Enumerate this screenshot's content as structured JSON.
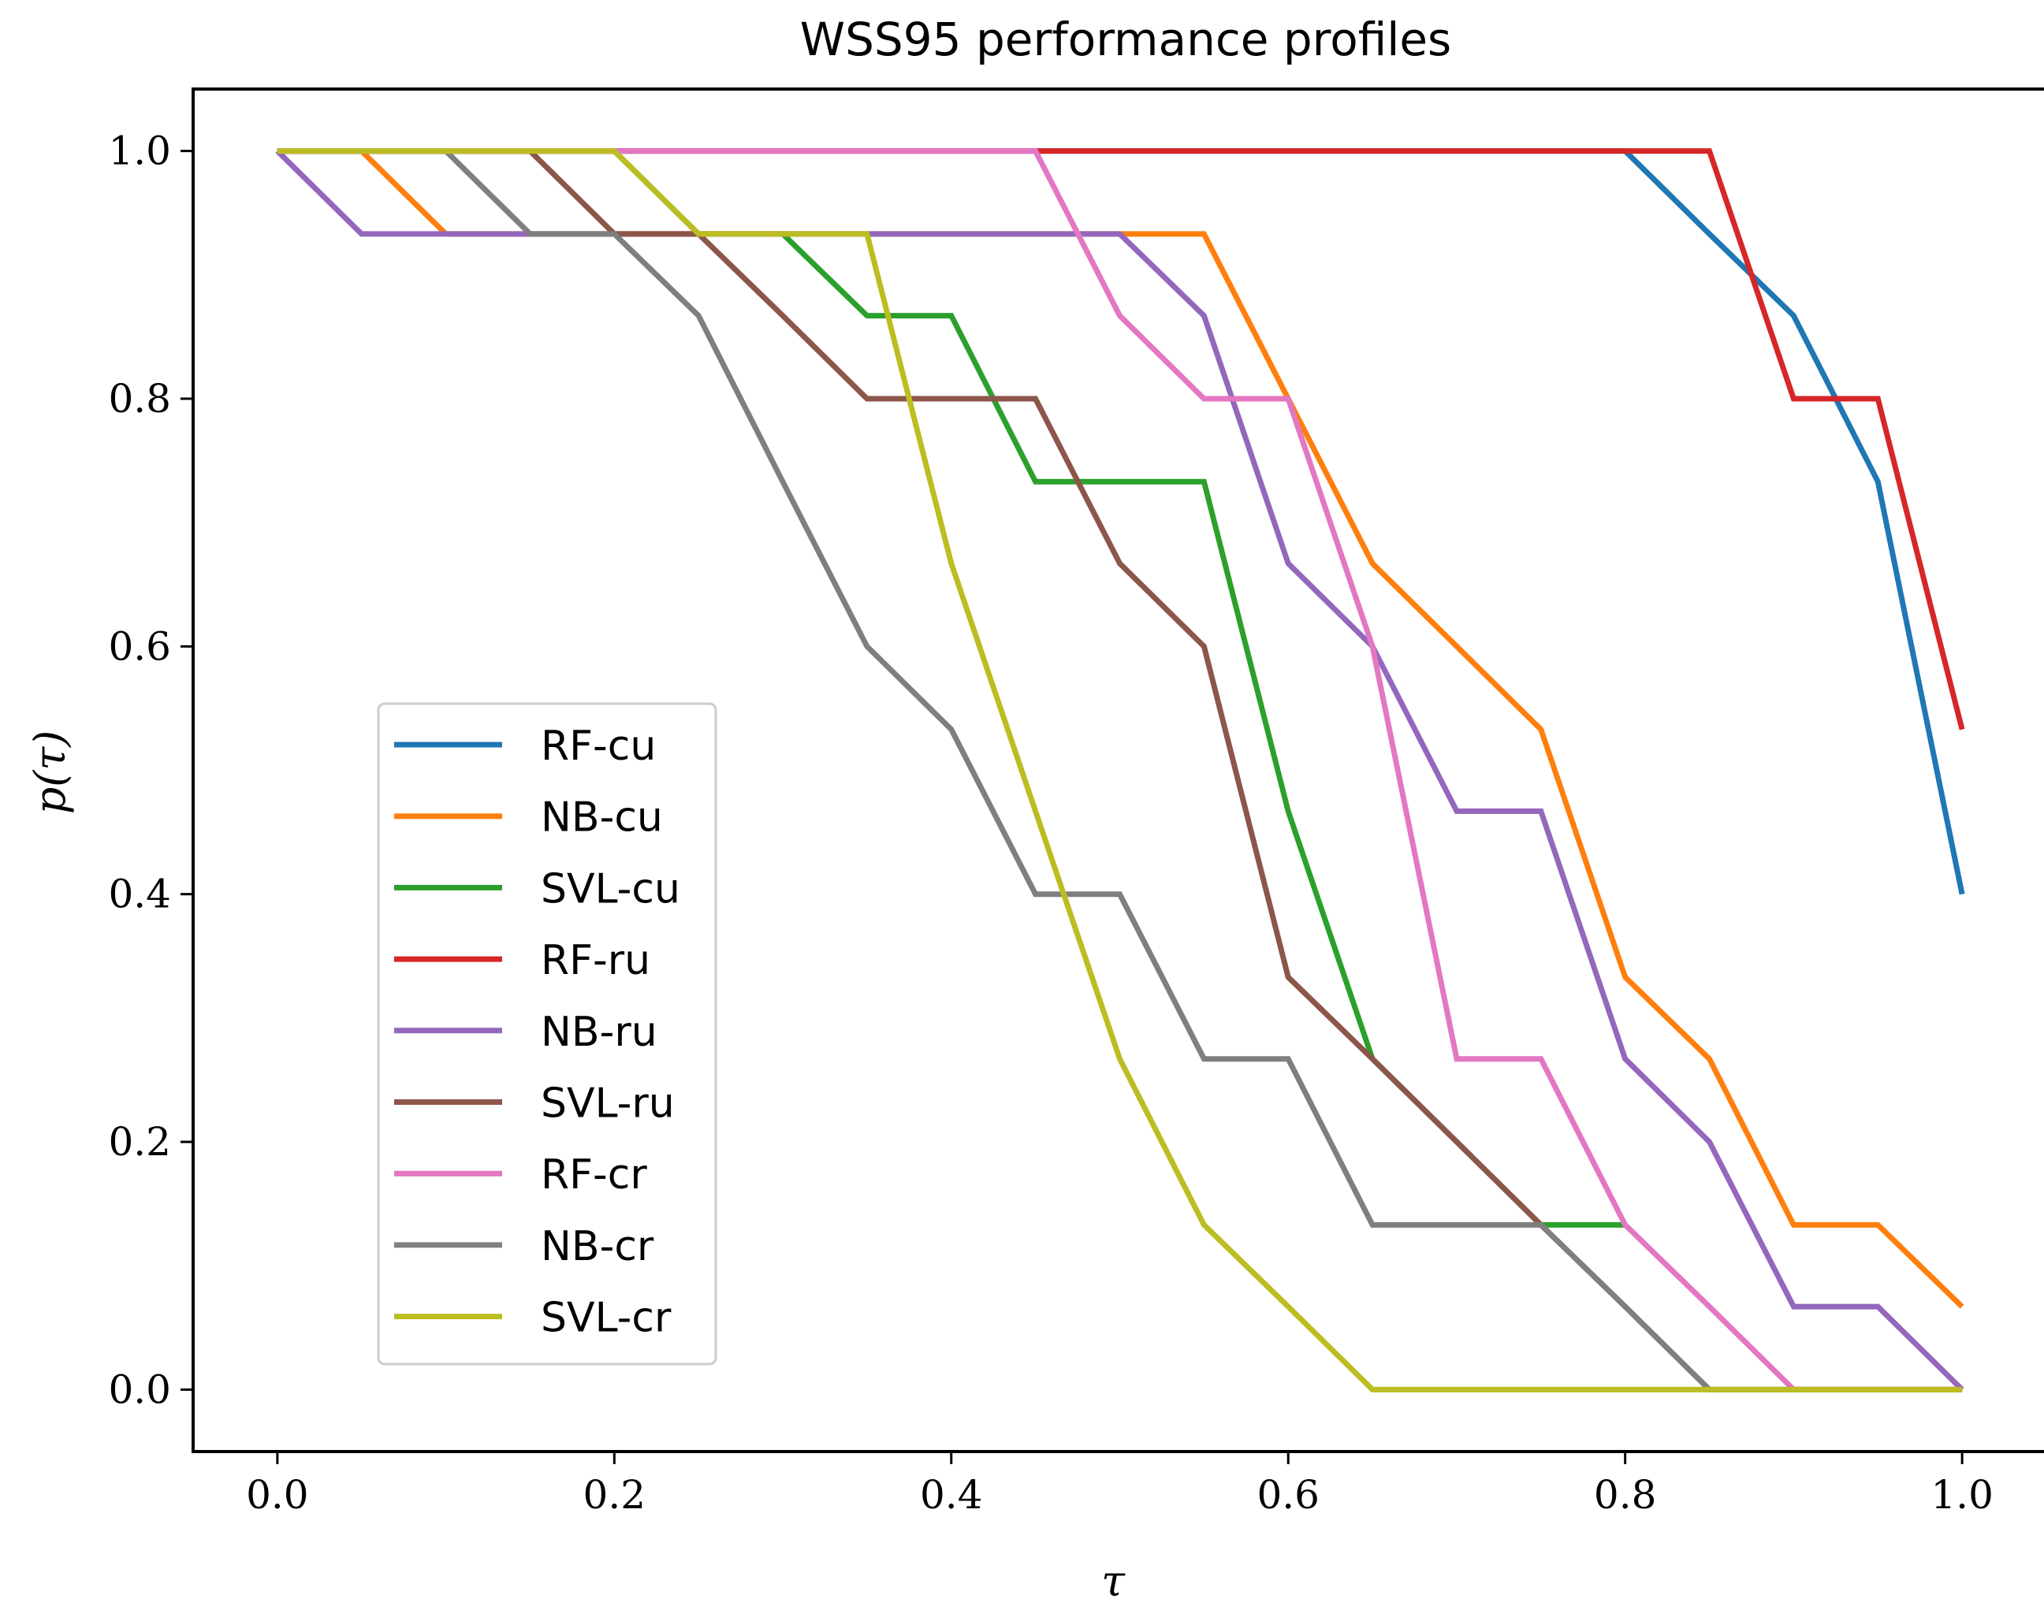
{
  "chart_data": {
    "type": "line",
    "title": "WSS95 performance profiles",
    "xlabel": "τ",
    "ylabel": "p(τ)",
    "xlim": [
      -0.05,
      1.05
    ],
    "ylim": [
      -0.05,
      1.05
    ],
    "xticks": [
      "0.0",
      "0.2",
      "0.4",
      "0.6",
      "0.8",
      "1.0"
    ],
    "yticks": [
      "0.0",
      "0.2",
      "0.4",
      "0.6",
      "0.8",
      "1.0"
    ],
    "legend_position": "center-left",
    "x": [
      0.0,
      0.05,
      0.1,
      0.15,
      0.2,
      0.25,
      0.3,
      0.35,
      0.4,
      0.45,
      0.5,
      0.55,
      0.6,
      0.65,
      0.7,
      0.75,
      0.8,
      0.85,
      0.9,
      0.95,
      1.0
    ],
    "series": [
      {
        "name": "RF-cu",
        "color": "#1f77b4",
        "values": [
          1,
          1,
          1,
          1,
          1,
          1,
          1,
          1,
          1,
          1,
          1,
          1,
          1,
          1,
          1,
          1,
          1,
          0.933,
          0.867,
          0.733,
          0.4
        ]
      },
      {
        "name": "NB-cu",
        "color": "#ff7f0e",
        "values": [
          1,
          1,
          0.933,
          0.933,
          0.933,
          0.933,
          0.933,
          0.933,
          0.933,
          0.933,
          0.933,
          0.933,
          0.8,
          0.667,
          0.6,
          0.533,
          0.333,
          0.267,
          0.133,
          0.133,
          0.067
        ]
      },
      {
        "name": "SVL-cu",
        "color": "#2ca02c",
        "values": [
          1,
          1,
          1,
          1,
          1,
          0.933,
          0.933,
          0.867,
          0.867,
          0.733,
          0.733,
          0.733,
          0.467,
          0.267,
          0.2,
          0.133,
          0.133,
          null,
          null,
          null,
          null
        ]
      },
      {
        "name": "RF-ru",
        "color": "#d62728",
        "values": [
          1,
          1,
          1,
          1,
          1,
          1,
          1,
          1,
          1,
          1,
          1,
          1,
          1,
          1,
          1,
          1,
          1,
          1,
          0.8,
          0.8,
          0.533
        ]
      },
      {
        "name": "NB-ru",
        "color": "#9467bd",
        "values": [
          1,
          0.933,
          0.933,
          0.933,
          0.933,
          0.933,
          0.933,
          0.933,
          0.933,
          0.933,
          0.933,
          0.867,
          0.667,
          0.6,
          0.467,
          0.467,
          0.267,
          0.2,
          0.067,
          0.067,
          0.0
        ]
      },
      {
        "name": "SVL-ru",
        "color": "#8c564b",
        "values": [
          1,
          1,
          1,
          1,
          0.933,
          0.933,
          0.867,
          0.8,
          0.8,
          0.8,
          0.667,
          0.6,
          0.333,
          0.267,
          0.2,
          0.133,
          0.067,
          0.0,
          0.0,
          0.0,
          0.0
        ]
      },
      {
        "name": "RF-cr",
        "color": "#e377c2",
        "values": [
          1,
          1,
          1,
          1,
          1,
          1,
          1,
          1,
          1,
          1,
          0.867,
          0.8,
          0.8,
          0.6,
          0.267,
          0.267,
          0.133,
          0.067,
          0.0,
          0.0,
          0.0
        ]
      },
      {
        "name": "NB-cr",
        "color": "#7f7f7f",
        "values": [
          1,
          1,
          1,
          0.933,
          0.933,
          0.867,
          0.733,
          0.6,
          0.533,
          0.4,
          0.4,
          0.267,
          0.267,
          0.133,
          0.133,
          0.133,
          0.067,
          0.0,
          0.0,
          0.0,
          0.0
        ]
      },
      {
        "name": "SVL-cr",
        "color": "#bcbd22",
        "values": [
          1,
          1,
          1,
          1,
          1,
          0.933,
          0.933,
          0.933,
          0.667,
          0.467,
          0.267,
          0.133,
          0.067,
          0.0,
          0.0,
          0.0,
          0.0,
          0.0,
          0.0,
          0.0,
          0.0
        ]
      }
    ]
  }
}
